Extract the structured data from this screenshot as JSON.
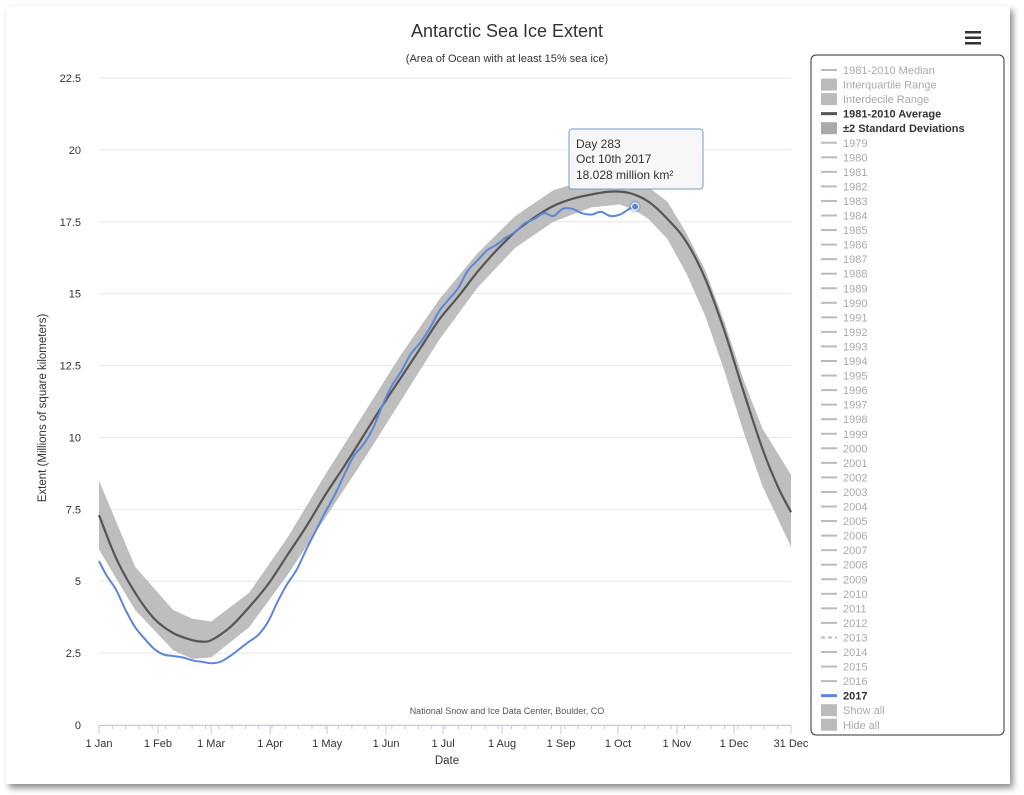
{
  "chart_data": {
    "type": "line",
    "title": "Antarctic Sea Ice Extent",
    "subtitle": "(Area of Ocean with at least 15% sea ice)",
    "xlabel": "Date",
    "ylabel": "Extent (Millions of square kilometers)",
    "credit": "National Snow and Ice Data Center, Boulder, CO",
    "xlim": [
      1,
      365
    ],
    "ylim": [
      0,
      22.5
    ],
    "y_ticks": [
      0,
      2.5,
      5,
      7.5,
      10,
      12.5,
      15,
      17.5,
      20,
      22.5
    ],
    "y_tick_labels": [
      "0",
      "2.5",
      "5",
      "7.5",
      "10",
      "12.5",
      "15",
      "17.5",
      "20",
      "22.5"
    ],
    "x_ticks": [
      {
        "day": 1,
        "label": "1 Jan"
      },
      {
        "day": 32,
        "label": "1 Feb"
      },
      {
        "day": 60,
        "label": "1 Mar"
      },
      {
        "day": 91,
        "label": "1 Apr"
      },
      {
        "day": 121,
        "label": "1 May"
      },
      {
        "day": 152,
        "label": "1 Jun"
      },
      {
        "day": 182,
        "label": "1 Jul"
      },
      {
        "day": 213,
        "label": "1 Aug"
      },
      {
        "day": 244,
        "label": "1 Sep"
      },
      {
        "day": 274,
        "label": "1 Oct"
      },
      {
        "day": 305,
        "label": "1 Nov"
      },
      {
        "day": 335,
        "label": "1 Dec"
      },
      {
        "day": 365,
        "label": "31 Dec"
      }
    ],
    "grid": true,
    "series": [
      {
        "name": "±2 Standard Deviations",
        "type": "band",
        "color": "#bbbbbb",
        "x": [
          1,
          20,
          40,
          50,
          60,
          80,
          100,
          120,
          140,
          160,
          180,
          200,
          220,
          240,
          260,
          275,
          283,
          290,
          300,
          310,
          320,
          330,
          340,
          350,
          365
        ],
        "low": [
          6.1,
          4.0,
          2.6,
          2.3,
          2.35,
          3.4,
          5.2,
          7.2,
          9.2,
          11.3,
          13.4,
          15.2,
          16.6,
          17.5,
          18.0,
          18.1,
          17.9,
          17.6,
          16.9,
          15.7,
          14.2,
          12.3,
          10.2,
          8.3,
          6.2
        ],
        "high": [
          8.5,
          5.5,
          4.0,
          3.7,
          3.6,
          4.6,
          6.5,
          8.7,
          10.8,
          12.9,
          14.8,
          16.4,
          17.7,
          18.6,
          19.0,
          19.0,
          18.9,
          18.7,
          18.2,
          17.1,
          15.8,
          14.0,
          12.0,
          10.3,
          8.7
        ]
      },
      {
        "name": "1981-2010 Average",
        "color": "#555555",
        "x": [
          1,
          10,
          20,
          30,
          40,
          50,
          55,
          60,
          70,
          80,
          90,
          100,
          110,
          120,
          130,
          140,
          150,
          160,
          170,
          180,
          190,
          200,
          210,
          220,
          230,
          240,
          250,
          260,
          270,
          280,
          290,
          300,
          310,
          320,
          330,
          340,
          350,
          358,
          365
        ],
        "y": [
          7.3,
          5.8,
          4.6,
          3.7,
          3.2,
          2.95,
          2.9,
          2.95,
          3.4,
          4.1,
          4.9,
          5.9,
          6.9,
          8.0,
          9.0,
          10.05,
          11.1,
          12.1,
          13.1,
          14.1,
          14.9,
          15.75,
          16.5,
          17.15,
          17.65,
          18.05,
          18.3,
          18.45,
          18.55,
          18.5,
          18.2,
          17.6,
          16.8,
          15.5,
          13.7,
          11.6,
          9.6,
          8.3,
          7.4
        ]
      },
      {
        "name": "2017",
        "color": "#5b87da",
        "x": [
          1,
          5,
          10,
          15,
          20,
          25,
          30,
          35,
          40,
          45,
          50,
          55,
          60,
          65,
          70,
          75,
          80,
          85,
          90,
          95,
          100,
          105,
          110,
          115,
          120,
          125,
          130,
          135,
          140,
          145,
          150,
          155,
          160,
          165,
          170,
          175,
          180,
          185,
          190,
          195,
          200,
          205,
          210,
          215,
          220,
          225,
          230,
          235,
          240,
          245,
          250,
          255,
          260,
          265,
          270,
          275,
          280,
          283
        ],
        "y": [
          5.7,
          5.2,
          4.7,
          4.0,
          3.4,
          3.0,
          2.65,
          2.45,
          2.4,
          2.35,
          2.25,
          2.2,
          2.15,
          2.2,
          2.4,
          2.65,
          2.9,
          3.15,
          3.6,
          4.3,
          4.9,
          5.4,
          6.1,
          6.75,
          7.4,
          8.0,
          8.7,
          9.35,
          9.75,
          10.3,
          11.1,
          11.8,
          12.3,
          12.9,
          13.3,
          13.8,
          14.4,
          14.8,
          15.2,
          15.8,
          16.15,
          16.5,
          16.7,
          16.95,
          17.15,
          17.45,
          17.6,
          17.8,
          17.7,
          17.95,
          17.95,
          17.8,
          17.75,
          17.85,
          17.7,
          17.75,
          17.95,
          18.028
        ]
      }
    ],
    "tooltip": {
      "line1": "Day 283",
      "line2": "Oct 10th 2017",
      "line3": "18.028 million km²",
      "x": 283,
      "y": 18.028
    },
    "legend": {
      "placement": "right",
      "items": [
        {
          "label": "1981-2010 Median",
          "symbol": "line",
          "active": false
        },
        {
          "label": "Interquartile Range",
          "symbol": "box",
          "active": false
        },
        {
          "label": "Interdecile Range",
          "symbol": "box",
          "active": false
        },
        {
          "label": "1981-2010 Average",
          "symbol": "line",
          "active": true,
          "color": "#555555"
        },
        {
          "label": "±2 Standard Deviations",
          "symbol": "box",
          "active": true,
          "color": "#aaaaaa"
        },
        {
          "label": "1979",
          "symbol": "line",
          "active": false
        },
        {
          "label": "1980",
          "symbol": "line",
          "active": false
        },
        {
          "label": "1981",
          "symbol": "line",
          "active": false
        },
        {
          "label": "1982",
          "symbol": "line",
          "active": false
        },
        {
          "label": "1983",
          "symbol": "line",
          "active": false
        },
        {
          "label": "1984",
          "symbol": "line",
          "active": false
        },
        {
          "label": "1985",
          "symbol": "line",
          "active": false
        },
        {
          "label": "1986",
          "symbol": "line",
          "active": false
        },
        {
          "label": "1987",
          "symbol": "line",
          "active": false
        },
        {
          "label": "1988",
          "symbol": "line",
          "active": false
        },
        {
          "label": "1989",
          "symbol": "line",
          "active": false
        },
        {
          "label": "1990",
          "symbol": "line",
          "active": false
        },
        {
          "label": "1991",
          "symbol": "line",
          "active": false
        },
        {
          "label": "1992",
          "symbol": "line",
          "active": false
        },
        {
          "label": "1993",
          "symbol": "line",
          "active": false
        },
        {
          "label": "1994",
          "symbol": "line",
          "active": false
        },
        {
          "label": "1995",
          "symbol": "line",
          "active": false
        },
        {
          "label": "1996",
          "symbol": "line",
          "active": false
        },
        {
          "label": "1997",
          "symbol": "line",
          "active": false
        },
        {
          "label": "1998",
          "symbol": "line",
          "active": false
        },
        {
          "label": "1999",
          "symbol": "line",
          "active": false
        },
        {
          "label": "2000",
          "symbol": "line",
          "active": false
        },
        {
          "label": "2001",
          "symbol": "line",
          "active": false
        },
        {
          "label": "2002",
          "symbol": "line",
          "active": false
        },
        {
          "label": "2003",
          "symbol": "line",
          "active": false
        },
        {
          "label": "2004",
          "symbol": "line",
          "active": false
        },
        {
          "label": "2005",
          "symbol": "line",
          "active": false
        },
        {
          "label": "2006",
          "symbol": "line",
          "active": false
        },
        {
          "label": "2007",
          "symbol": "line",
          "active": false
        },
        {
          "label": "2008",
          "symbol": "line",
          "active": false
        },
        {
          "label": "2009",
          "symbol": "line",
          "active": false
        },
        {
          "label": "2010",
          "symbol": "line",
          "active": false
        },
        {
          "label": "2011",
          "symbol": "line",
          "active": false
        },
        {
          "label": "2012",
          "symbol": "line",
          "active": false
        },
        {
          "label": "2013",
          "symbol": "dash",
          "active": false
        },
        {
          "label": "2014",
          "symbol": "line",
          "active": false
        },
        {
          "label": "2015",
          "symbol": "line",
          "active": false
        },
        {
          "label": "2016",
          "symbol": "line",
          "active": false
        },
        {
          "label": "2017",
          "symbol": "line",
          "active": true,
          "color": "#5b87da"
        },
        {
          "label": "Show all",
          "symbol": "box",
          "active": false
        },
        {
          "label": "Hide all",
          "symbol": "box",
          "active": false
        }
      ]
    }
  },
  "menu": {
    "icon": "hamburger-menu-icon"
  }
}
